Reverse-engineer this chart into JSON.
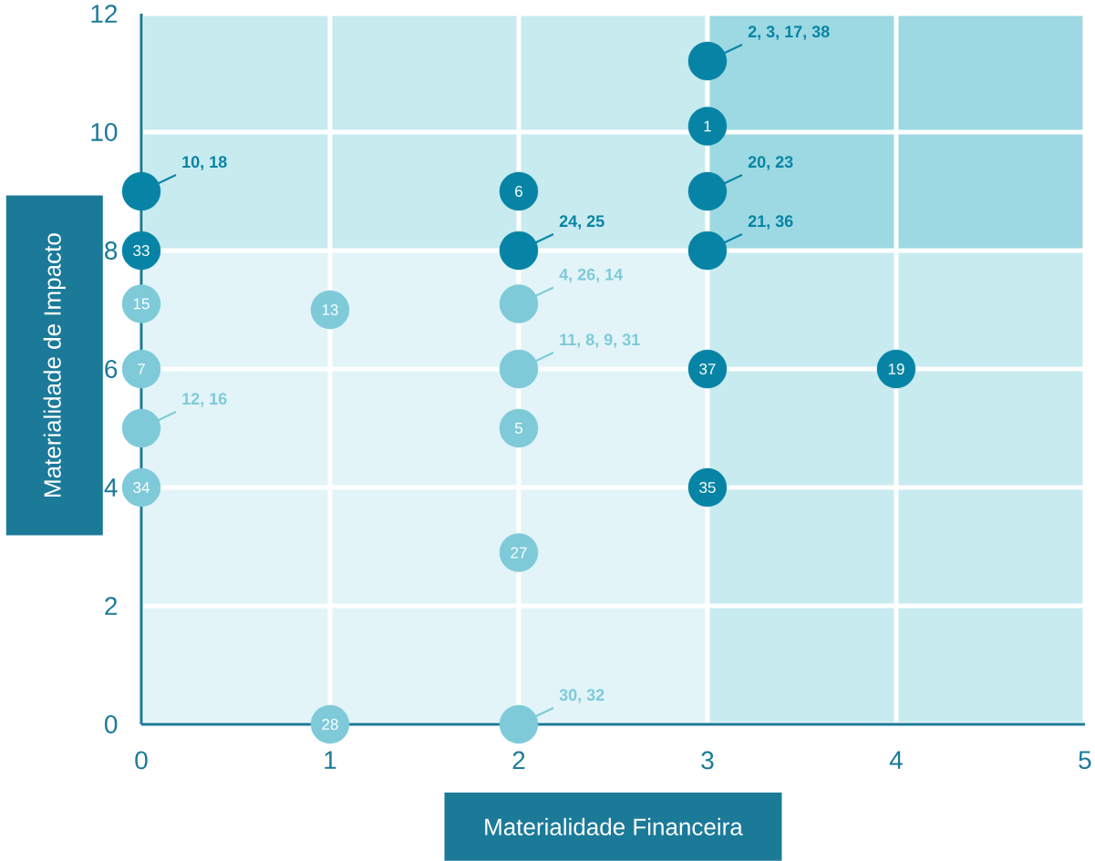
{
  "chart_data": {
    "type": "scatter",
    "xlabel": "Materialidade Financeira",
    "ylabel": "Materialidade de Impacto",
    "xlim": [
      0,
      5
    ],
    "ylim": [
      0,
      12
    ],
    "xticks": [
      0,
      1,
      2,
      3,
      4,
      5
    ],
    "yticks": [
      0,
      2,
      4,
      6,
      8,
      10,
      12
    ],
    "grid": true,
    "marker": "circle",
    "bands": [
      {
        "axis": "y",
        "from": 8,
        "to": 12,
        "color": "#c8ebf0"
      },
      {
        "axis": "x",
        "from": 3,
        "to": 5,
        "color": "#c8ebf0"
      }
    ],
    "series": [
      {
        "color": "#0784a5",
        "x": [
          3,
          3,
          3,
          3,
          0,
          0,
          2,
          2,
          3,
          4,
          3
        ],
        "values": [
          11.2,
          10.1,
          9,
          8,
          9,
          8,
          9,
          8,
          6,
          6,
          4
        ]
      },
      {
        "color": "#7ecad9",
        "x": [
          0,
          1,
          2,
          0,
          2,
          0,
          2,
          0,
          2,
          1,
          2
        ],
        "values": [
          7.1,
          7,
          7.1,
          6,
          6,
          5,
          5,
          4,
          2.9,
          0,
          0
        ]
      }
    ],
    "annotations": [
      {
        "text": "2, 3, 17, 38",
        "x": 3,
        "y": 11.2
      },
      {
        "text": "1",
        "x": 3,
        "y": 10.1
      },
      {
        "text": "20, 23",
        "x": 3,
        "y": 9
      },
      {
        "text": "21, 36",
        "x": 3,
        "y": 8
      },
      {
        "text": "10, 18",
        "x": 0,
        "y": 9
      },
      {
        "text": "33",
        "x": 0,
        "y": 8
      },
      {
        "text": "6",
        "x": 2,
        "y": 9
      },
      {
        "text": "24, 25",
        "x": 2,
        "y": 8
      },
      {
        "text": "37",
        "x": 3,
        "y": 6
      },
      {
        "text": "19",
        "x": 4,
        "y": 6
      },
      {
        "text": "35",
        "x": 3,
        "y": 4
      },
      {
        "text": "15",
        "x": 0,
        "y": 7.1
      },
      {
        "text": "13",
        "x": 1,
        "y": 7
      },
      {
        "text": "4, 26, 14",
        "x": 2,
        "y": 7.1
      },
      {
        "text": "7",
        "x": 0,
        "y": 6
      },
      {
        "text": "11, 8, 9, 31",
        "x": 2,
        "y": 6
      },
      {
        "text": "12, 16",
        "x": 0,
        "y": 5
      },
      {
        "text": "5",
        "x": 2,
        "y": 5
      },
      {
        "text": "34",
        "x": 0,
        "y": 4
      },
      {
        "text": "27",
        "x": 2,
        "y": 2.9
      },
      {
        "text": "28",
        "x": 1,
        "y": 0
      },
      {
        "text": "30, 32",
        "x": 2,
        "y": 0
      }
    ]
  }
}
